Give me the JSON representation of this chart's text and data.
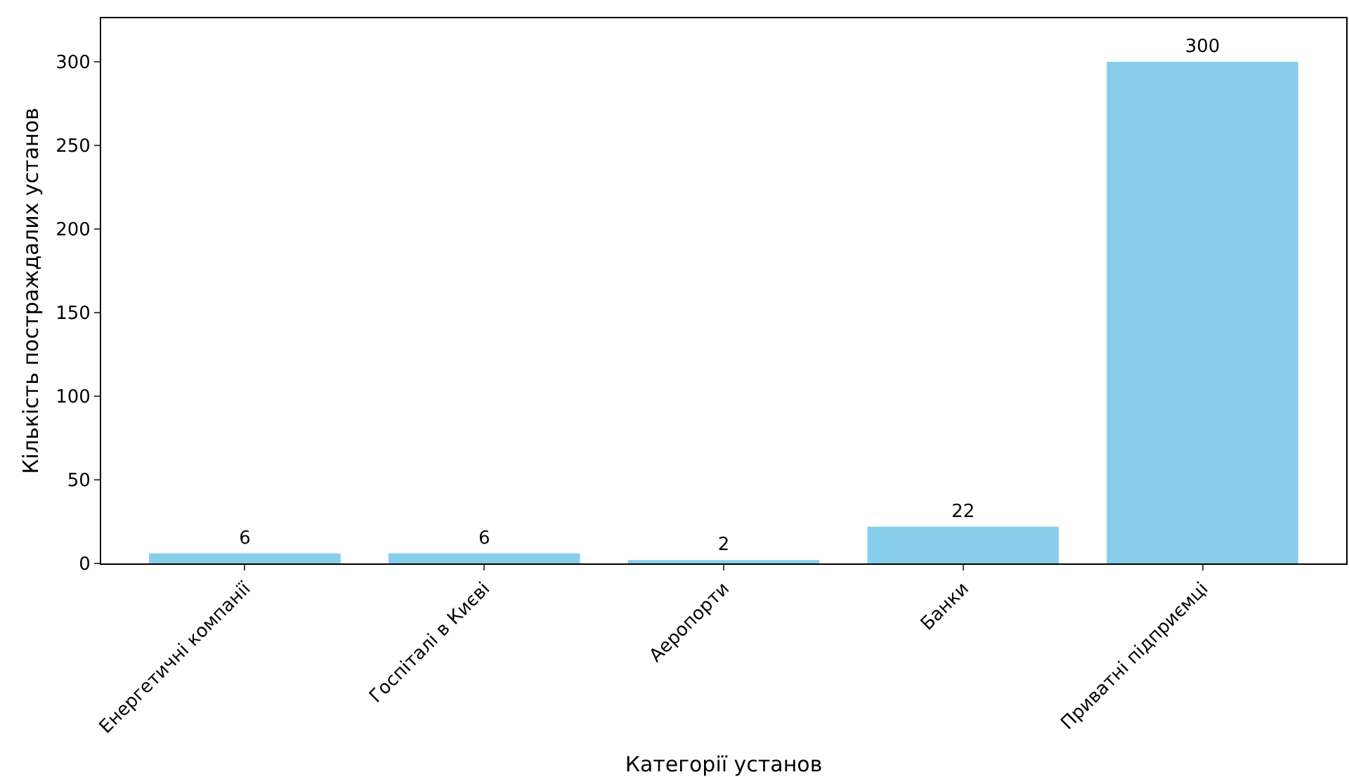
{
  "chart_data": {
    "type": "bar",
    "xlabel": "Категорії установ",
    "ylabel": "Кількість постраждалих установ",
    "categories": [
      "Енергетичні компанії",
      "Госпіталі в Києві",
      "Аеропорти",
      "Банки",
      "Приватні підприємці"
    ],
    "values": [
      6,
      6,
      2,
      22,
      300
    ],
    "color": "#87ceeb",
    "data_labels": true,
    "ylim": [
      0,
      326
    ],
    "yticks": [
      0,
      50,
      100,
      150,
      200,
      250,
      300
    ]
  }
}
